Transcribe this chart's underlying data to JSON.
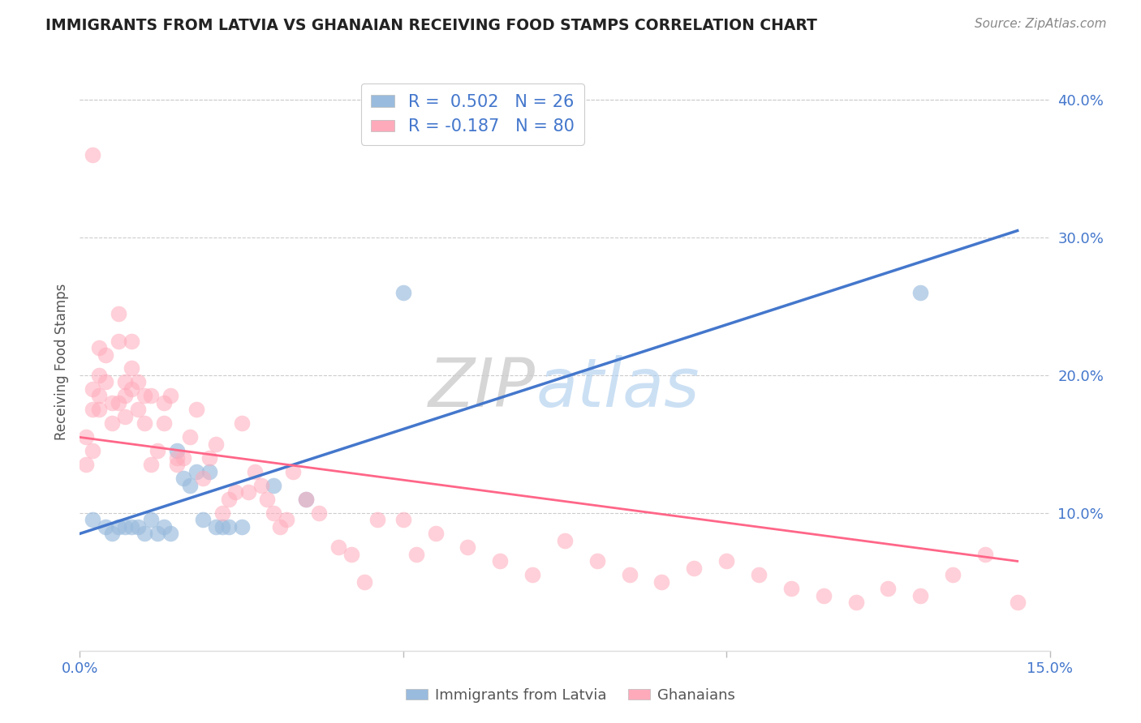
{
  "title": "IMMIGRANTS FROM LATVIA VS GHANAIAN RECEIVING FOOD STAMPS CORRELATION CHART",
  "source": "Source: ZipAtlas.com",
  "ylabel": "Receiving Food Stamps",
  "xlim": [
    0.0,
    0.15
  ],
  "ylim": [
    0.0,
    0.42
  ],
  "xticks": [
    0.0,
    0.05,
    0.1,
    0.15
  ],
  "xtick_labels": [
    "0.0%",
    "",
    "",
    "15.0%"
  ],
  "ytick_labels_right": [
    "10.0%",
    "20.0%",
    "30.0%",
    "40.0%"
  ],
  "yticks_right": [
    0.1,
    0.2,
    0.3,
    0.4
  ],
  "blue_color": "#99BBDD",
  "pink_color": "#FFAABB",
  "blue_line_color": "#4477CC",
  "pink_line_color": "#FF6688",
  "watermark_zip": "ZIP",
  "watermark_atlas": "atlas",
  "blue_scatter_x": [
    0.002,
    0.004,
    0.005,
    0.006,
    0.007,
    0.008,
    0.009,
    0.01,
    0.011,
    0.012,
    0.013,
    0.014,
    0.015,
    0.016,
    0.017,
    0.018,
    0.019,
    0.02,
    0.021,
    0.022,
    0.023,
    0.025,
    0.03,
    0.035,
    0.05,
    0.13
  ],
  "blue_scatter_y": [
    0.095,
    0.09,
    0.085,
    0.09,
    0.09,
    0.09,
    0.09,
    0.085,
    0.095,
    0.085,
    0.09,
    0.085,
    0.145,
    0.125,
    0.12,
    0.13,
    0.095,
    0.13,
    0.09,
    0.09,
    0.09,
    0.09,
    0.12,
    0.11,
    0.26,
    0.26
  ],
  "pink_scatter_x": [
    0.001,
    0.001,
    0.002,
    0.002,
    0.002,
    0.003,
    0.003,
    0.003,
    0.003,
    0.004,
    0.004,
    0.005,
    0.005,
    0.006,
    0.006,
    0.006,
    0.007,
    0.007,
    0.007,
    0.008,
    0.008,
    0.008,
    0.009,
    0.009,
    0.01,
    0.01,
    0.011,
    0.011,
    0.012,
    0.013,
    0.013,
    0.014,
    0.015,
    0.015,
    0.016,
    0.017,
    0.018,
    0.019,
    0.02,
    0.021,
    0.022,
    0.023,
    0.024,
    0.025,
    0.026,
    0.027,
    0.028,
    0.029,
    0.03,
    0.031,
    0.032,
    0.033,
    0.035,
    0.037,
    0.04,
    0.042,
    0.044,
    0.046,
    0.05,
    0.052,
    0.055,
    0.06,
    0.065,
    0.07,
    0.075,
    0.08,
    0.085,
    0.09,
    0.095,
    0.1,
    0.105,
    0.11,
    0.115,
    0.12,
    0.125,
    0.13,
    0.135,
    0.14,
    0.145,
    0.002
  ],
  "pink_scatter_y": [
    0.135,
    0.155,
    0.145,
    0.175,
    0.19,
    0.22,
    0.2,
    0.185,
    0.175,
    0.215,
    0.195,
    0.165,
    0.18,
    0.245,
    0.225,
    0.18,
    0.185,
    0.195,
    0.17,
    0.225,
    0.205,
    0.19,
    0.195,
    0.175,
    0.165,
    0.185,
    0.135,
    0.185,
    0.145,
    0.165,
    0.18,
    0.185,
    0.135,
    0.14,
    0.14,
    0.155,
    0.175,
    0.125,
    0.14,
    0.15,
    0.1,
    0.11,
    0.115,
    0.165,
    0.115,
    0.13,
    0.12,
    0.11,
    0.1,
    0.09,
    0.095,
    0.13,
    0.11,
    0.1,
    0.075,
    0.07,
    0.05,
    0.095,
    0.095,
    0.07,
    0.085,
    0.075,
    0.065,
    0.055,
    0.08,
    0.065,
    0.055,
    0.05,
    0.06,
    0.065,
    0.055,
    0.045,
    0.04,
    0.035,
    0.045,
    0.04,
    0.055,
    0.07,
    0.035,
    0.36
  ],
  "blue_trendline_x": [
    0.0,
    0.145
  ],
  "blue_trendline_y": [
    0.085,
    0.305
  ],
  "pink_trendline_x": [
    0.0,
    0.145
  ],
  "pink_trendline_y": [
    0.155,
    0.065
  ],
  "grid_color": "#CCCCCC",
  "background_color": "#FFFFFF",
  "legend_text_color": "#333333",
  "legend_value_color": "#4477CC"
}
